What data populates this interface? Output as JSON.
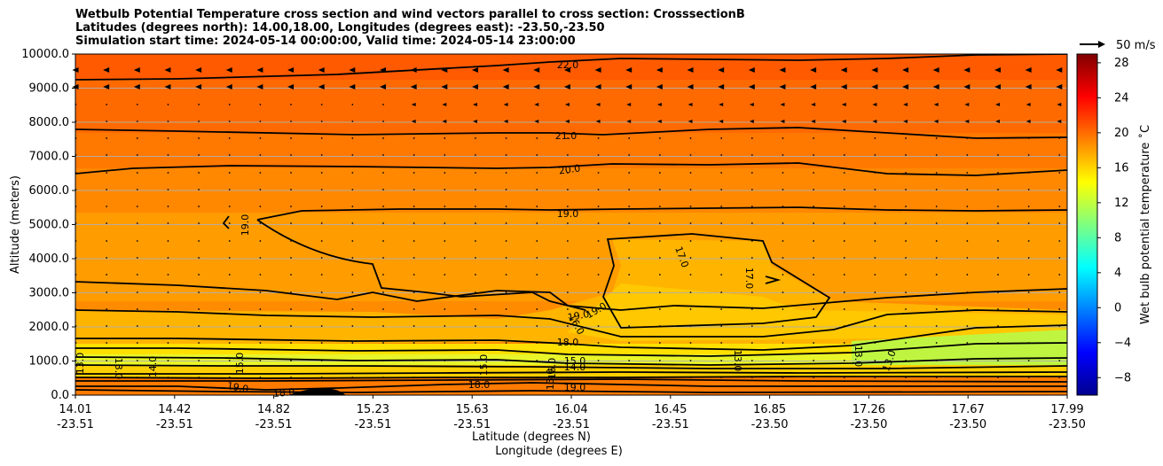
{
  "chart_data": {
    "type": "heatmap",
    "title_lines": [
      "Wetbulb Potential Temperature cross section and wind vectors parallel to cross section: CrosssectionB",
      "Latitudes (degrees north): 14.00,18.00, Longitudes (degrees east): -23.50,-23.50",
      "Simulation start time: 2024-05-14 00:00:00, Valid time: 2024-05-14 23:00:00"
    ],
    "ylabel": "Altitude (meters)",
    "xlabel_lat": "Latitude (degrees N)",
    "xlabel_lon": "Longitude (degrees E)",
    "ylim": [
      0,
      10000
    ],
    "y_ticks": [
      "0.0",
      "1000.0",
      "2000.0",
      "3000.0",
      "4000.0",
      "5000.0",
      "6000.0",
      "7000.0",
      "8000.0",
      "9000.0",
      "10000.0"
    ],
    "x_ticks": [
      {
        "lat": "14.01",
        "lon": "-23.51"
      },
      {
        "lat": "14.42",
        "lon": "-23.51"
      },
      {
        "lat": "14.82",
        "lon": "-23.51"
      },
      {
        "lat": "15.23",
        "lon": "-23.51"
      },
      {
        "lat": "15.63",
        "lon": "-23.51"
      },
      {
        "lat": "16.04",
        "lon": "-23.51"
      },
      {
        "lat": "16.45",
        "lon": "-23.51"
      },
      {
        "lat": "16.85",
        "lon": "-23.50"
      },
      {
        "lat": "17.26",
        "lon": "-23.50"
      },
      {
        "lat": "17.67",
        "lon": "-23.50"
      },
      {
        "lat": "17.99",
        "lon": "-23.50"
      }
    ],
    "colorbar": {
      "label": "Wet bulb potential temperature $^\\circ$C",
      "label_display": "Wet bulb potential temperature ˚C",
      "range": [
        -10,
        29
      ],
      "ticks": [
        "−8",
        "−4",
        "0",
        "4",
        "8",
        "12",
        "16",
        "20",
        "24",
        "28"
      ],
      "colormap": "jet"
    },
    "quiver_key": "50 m/s",
    "grid": "horizontal",
    "contour_labels": [
      "22.0",
      "21.0",
      "20.0",
      "19.0",
      "19.0",
      "17.0",
      "17.0",
      "19.0",
      "19.0",
      "16.0",
      "18.0",
      "15.0",
      "14.0",
      "13.0",
      "13.0",
      "14.0",
      "15.0",
      "19.0",
      "18.0",
      "13.0",
      "18.0",
      "19.0",
      "15.0",
      "16.0",
      "13.0",
      "13.0",
      "13.0"
    ]
  },
  "colors": {
    "background": "#ffffff",
    "top_band": "#ff5a00",
    "upper": "#ff6f00",
    "middle": "#ff9a00",
    "warm_core": "#ffc400",
    "low_level": "#ccff33",
    "contour": "#000000"
  }
}
